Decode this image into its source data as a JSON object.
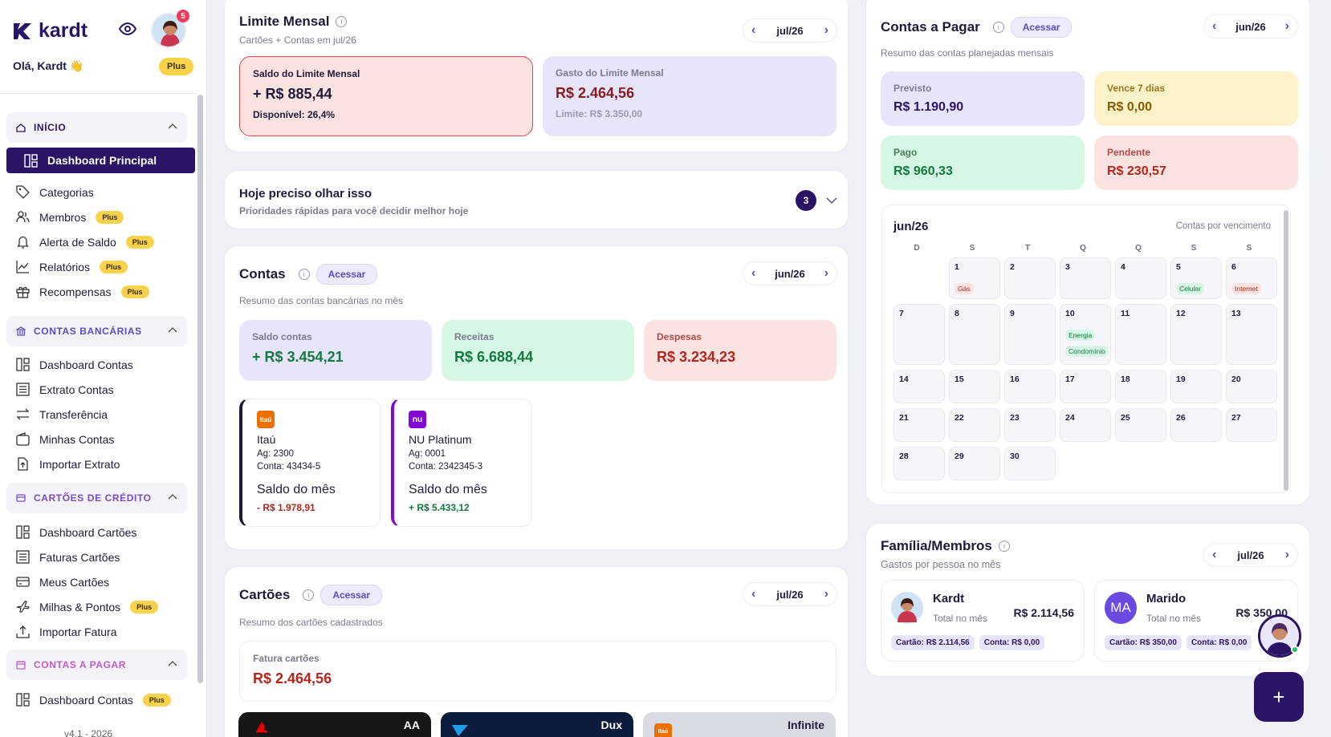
{
  "sidebar": {
    "brand": "kardt",
    "notifications": "5",
    "greeting": "Olá, Kardt 👋",
    "plan": "Plus",
    "sections": {
      "inicio": "INÍCIO",
      "contas_bancarias": "CONTAS BANCÁRIAS",
      "cartoes": "CARTÕES DE CRÉDITO",
      "contas_pagar": "CONTAS A PAGAR"
    },
    "items": {
      "dashboard_principal": "Dashboard Principal",
      "categorias": "Categorias",
      "membros": "Membros",
      "alerta_saldo": "Alerta de Saldo",
      "relatorios": "Relatórios",
      "recompensas": "Recompensas",
      "dashboard_contas": "Dashboard Contas",
      "extrato_contas": "Extrato Contas",
      "transferencia": "Transferência",
      "minhas_contas": "Minhas Contas",
      "importar_extrato": "Importar Extrato",
      "dashboard_cartoes": "Dashboard Cartões",
      "faturas_cartoes": "Faturas Cartões",
      "meus_cartoes": "Meus Cartões",
      "milhas_pontos": "Milhas & Pontos",
      "importar_fatura": "Importar Fatura",
      "dashboard_contas_pagar": "Dashboard Contas"
    },
    "plus_badge": "Plus",
    "version": "v4.1 - 2026"
  },
  "limite": {
    "title": "Limite Mensal",
    "subtitle": "Cartões + Contas em jul/26",
    "month": "jul/26",
    "saldo_label": "Saldo do Limite Mensal",
    "saldo_value": "+ R$ 885,44",
    "disponivel": "Disponível: 26,4%",
    "gasto_label": "Gasto do Limite Mensal",
    "gasto_value": "R$ 2.464,56",
    "limite_text": "Limite: R$ 3.350,00"
  },
  "hoje": {
    "title": "Hoje preciso olhar isso",
    "subtitle": "Prioridades rápidas para você decidir melhor hoje",
    "count": "3"
  },
  "contas": {
    "title": "Contas",
    "action": "Acessar",
    "month": "jun/26",
    "subtitle": "Resumo das contas bancárias no mês",
    "saldo_label": "Saldo contas",
    "saldo_value": "+ R$ 3.454,21",
    "receitas_label": "Receitas",
    "receitas_value": "R$ 6.688,44",
    "despesas_label": "Despesas",
    "despesas_value": "R$ 3.234,23",
    "accounts": [
      {
        "logo": "Itaú",
        "name": "Itaú",
        "agency": "Ag: 2300",
        "account": "Conta: 43434-5",
        "label": "Saldo do mês",
        "value": "- R$ 1.978,91",
        "color": "#ec7000"
      },
      {
        "logo": "nu",
        "name": "NU Platinum",
        "agency": "Ag: 0001",
        "account": "Conta: 2342345-3",
        "label": "Saldo do mês",
        "value": "+ R$ 5.433,12",
        "color": "#820ad1"
      }
    ]
  },
  "cartoes": {
    "title": "Cartões",
    "action": "Acessar",
    "month": "jul/26",
    "subtitle": "Resumo dos cartões cadastrados",
    "fatura_label": "Fatura cartões",
    "fatura_value": "R$ 2.464,56",
    "cards": [
      "AA",
      "Dux",
      "Infinite"
    ]
  },
  "pagar": {
    "title": "Contas a Pagar",
    "action": "Acessar",
    "month": "jun/26",
    "subtitle": "Resumo das contas planejadas mensais",
    "previsto_label": "Previsto",
    "previsto_value": "R$ 1.190,90",
    "vence_label": "Vence 7 dias",
    "vence_value": "R$ 0,00",
    "pago_label": "Pago",
    "pago_value": "R$ 960,33",
    "pendente_label": "Pendente",
    "pendente_value": "R$ 230,57",
    "calendar": {
      "title": "jun/26",
      "caption": "Contas por vencimento",
      "weekdays": [
        "D",
        "S",
        "T",
        "Q",
        "Q",
        "S",
        "S"
      ],
      "tags": {
        "d1": "Gás",
        "d5": "Celular",
        "d6": "Internet",
        "d10a": "Energia",
        "d10b": "Condomínio"
      }
    }
  },
  "familia": {
    "title": "Família/Membros",
    "subtitle": "Gastos por pessoa no mês",
    "month": "jul/26",
    "members": [
      {
        "name": "Kardt",
        "total_label": "Total no mês",
        "total": "R$ 2.114,56",
        "cartao": "Cartão: R$ 2.114,56",
        "conta": "Conta: R$ 0,00"
      },
      {
        "initials": "MA",
        "name": "Marido",
        "total_label": "Total no mês",
        "total": "R$ 350,00",
        "cartao": "Cartão: R$ 350,00",
        "conta": "Conta: R$ 0,00"
      }
    ]
  },
  "colors": {
    "primary": "#2a1466",
    "accent": "#5b4bc4",
    "plus": "#f8d24a",
    "negative": "#b3261e",
    "positive": "#137a3f"
  }
}
